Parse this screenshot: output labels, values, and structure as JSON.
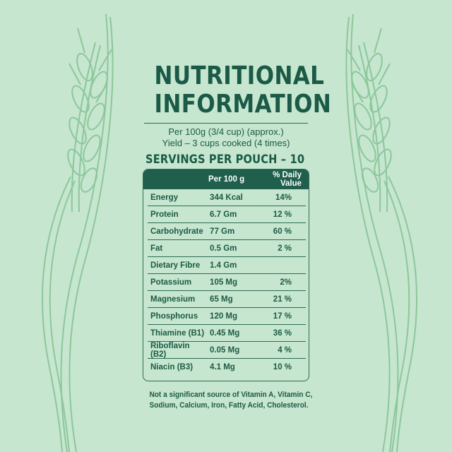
{
  "title_line1": "NUTRITIONAL",
  "title_line2": "INFORMATION",
  "per_line": "Per 100g (3/4 cup) (approx.)",
  "yield_line": "Yield – 3 cups cooked (4 times)",
  "servings": "SERVINGS PER POUCH – 10",
  "table": {
    "headers": [
      "",
      "Per 100 g",
      "% Daily Value"
    ],
    "rows": [
      {
        "nutrient": "Energy",
        "amount": "344 Kcal",
        "dv": "14%"
      },
      {
        "nutrient": "Protein",
        "amount": "6.7 Gm",
        "dv": "12 %"
      },
      {
        "nutrient": "Carbohydrate",
        "amount": "77 Gm",
        "dv": "60 %"
      },
      {
        "nutrient": "Fat",
        "amount": "0.5 Gm",
        "dv": "2 %"
      },
      {
        "nutrient": "Dietary Fibre",
        "amount": "1.4 Gm",
        "dv": ""
      },
      {
        "nutrient": "Potassium",
        "amount": "105 Mg",
        "dv": "2%"
      },
      {
        "nutrient": "Magnesium",
        "amount": "65 Mg",
        "dv": "21 %"
      },
      {
        "nutrient": "Phosphorus",
        "amount": "120 Mg",
        "dv": "17 %"
      },
      {
        "nutrient": "Thiamine (B1)",
        "amount": "0.45 Mg",
        "dv": "36 %"
      },
      {
        "nutrient": "Riboflavin (B2)",
        "amount": "0.05 Mg",
        "dv": "4 %"
      },
      {
        "nutrient": "Niacin (B3)",
        "amount": "4.1 Mg",
        "dv": "10 %"
      }
    ]
  },
  "footnote_line1": "Not a significant source of Vitamin A, Vitamin C,",
  "footnote_line2": "Sodium, Calcium, Iron, Fatty Acid, Cholesterol.",
  "colors": {
    "background": "#c6e6cf",
    "primary": "#1f5f4b",
    "wheat": "#8cc79b"
  }
}
